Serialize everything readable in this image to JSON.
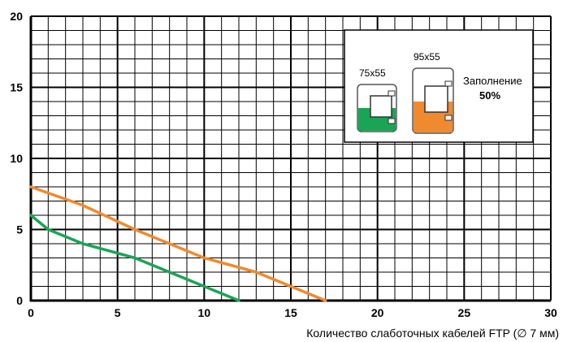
{
  "chart_data": {
    "type": "line",
    "xlabel": "Количество слаботочных кабелей FTP (∅ 7 мм)",
    "ylabel": "",
    "xlim": [
      0,
      30
    ],
    "ylim": [
      0,
      20
    ],
    "xticks": [
      0,
      5,
      10,
      15,
      20,
      25,
      30
    ],
    "yticks": [
      0,
      5,
      10,
      15,
      20
    ],
    "x_minor_step": 1,
    "y_minor_step": 1,
    "grid": true,
    "series": [
      {
        "name": "75x55",
        "color": "#1aa556",
        "points": [
          [
            0,
            6
          ],
          [
            1,
            5
          ],
          [
            3,
            4
          ],
          [
            6,
            3
          ],
          [
            10,
            1
          ],
          [
            12,
            0
          ]
        ]
      },
      {
        "name": "95x55",
        "color": "#f08a2e",
        "points": [
          [
            0,
            8
          ],
          [
            3,
            6.7
          ],
          [
            6,
            5
          ],
          [
            10,
            3
          ],
          [
            13,
            2
          ],
          [
            17,
            0
          ]
        ]
      }
    ],
    "legend": {
      "placement": "top-right",
      "fill_label": "Заполнение",
      "fill_value": "50%"
    }
  }
}
